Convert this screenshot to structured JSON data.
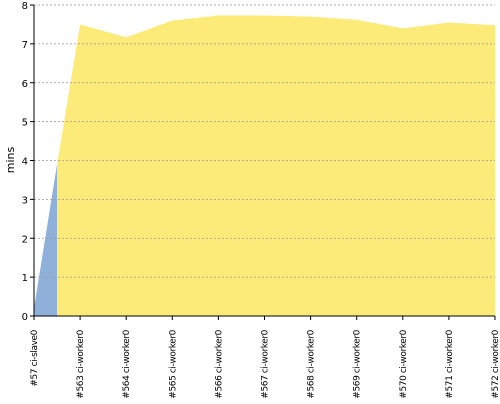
{
  "chart_data": {
    "type": "area",
    "ylabel": "mins",
    "xlabel": "",
    "ylim": [
      0,
      8
    ],
    "yticks": [
      "0",
      "1",
      "2",
      "3",
      "4",
      "5",
      "6",
      "7",
      "8"
    ],
    "grid": true,
    "categories": [
      "#57 ci-slave0",
      "#563 ci-worker0",
      "#564 ci-worker0",
      "#565 ci-worker0",
      "#566 ci-worker0",
      "#567 ci-worker0",
      "#568 ci-worker0",
      "#569 ci-worker0",
      "#570 ci-worker0",
      "#571 ci-worker0",
      "#572 ci-worker0"
    ],
    "series": [
      {
        "color": "#8fb0d9",
        "points": [
          {
            "x": 0,
            "y": 0.2
          },
          {
            "x": 0.5,
            "y": 3.9
          }
        ]
      },
      {
        "color": "#fdeb79",
        "points": [
          {
            "x": 0.5,
            "y": 3.9
          },
          {
            "x": 1,
            "y": 7.5
          },
          {
            "x": 2,
            "y": 7.17
          },
          {
            "x": 3,
            "y": 7.6
          },
          {
            "x": 4,
            "y": 7.73
          },
          {
            "x": 5,
            "y": 7.73
          },
          {
            "x": 6,
            "y": 7.7
          },
          {
            "x": 7,
            "y": 7.62
          },
          {
            "x": 8,
            "y": 7.4
          },
          {
            "x": 9,
            "y": 7.55
          },
          {
            "x": 10,
            "y": 7.48
          }
        ]
      }
    ]
  }
}
